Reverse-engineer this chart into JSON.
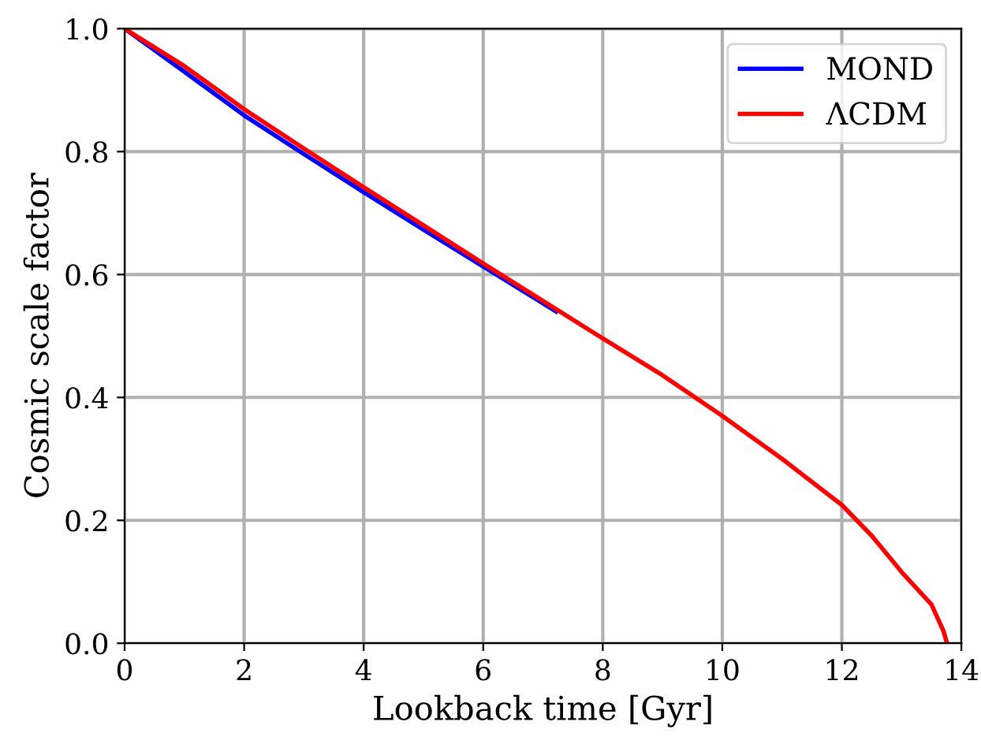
{
  "chart_data": {
    "type": "line",
    "xlabel": "Lookback time [Gyr]",
    "ylabel": "Cosmic scale factor",
    "xlim": [
      0,
      14
    ],
    "ylim": [
      0,
      1
    ],
    "xticks": [
      0,
      2,
      4,
      6,
      8,
      10,
      12,
      14
    ],
    "yticks": [
      {
        "value": 0,
        "label": "0.0"
      },
      {
        "value": 0.2,
        "label": "0.2"
      },
      {
        "value": 0.4,
        "label": "0.4"
      },
      {
        "value": 0.6,
        "label": "0.6"
      },
      {
        "value": 0.8,
        "label": "0.8"
      },
      {
        "value": 1,
        "label": "1.0"
      }
    ],
    "grid": true,
    "legend": "top right",
    "series": [
      {
        "name": "MOND",
        "color": "#0000ff",
        "x": [
          0,
          1,
          2,
          3,
          4,
          5,
          6,
          7.22
        ],
        "values": [
          1.0,
          0.93,
          0.859,
          0.796,
          0.734,
          0.673,
          0.613,
          0.54
        ]
      },
      {
        "name": "ΛCDM",
        "color": "#ff0000",
        "x": [
          0,
          1,
          2,
          3,
          4,
          5,
          6,
          7,
          8,
          9,
          10,
          11,
          12,
          12.5,
          13,
          13.5,
          13.7,
          13.76
        ],
        "values": [
          1.0,
          0.939,
          0.869,
          0.805,
          0.742,
          0.68,
          0.618,
          0.557,
          0.496,
          0.436,
          0.37,
          0.3,
          0.225,
          0.175,
          0.116,
          0.063,
          0.02,
          0.0
        ]
      }
    ]
  }
}
